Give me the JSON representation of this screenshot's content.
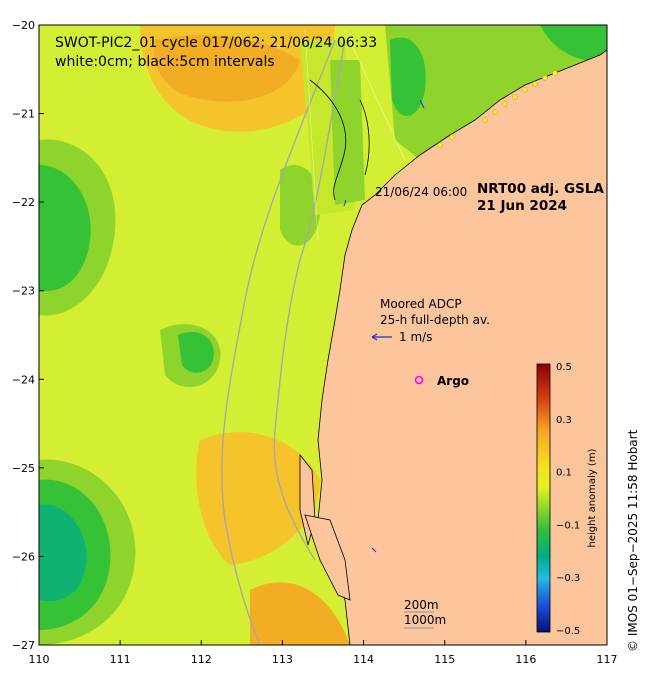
{
  "header": {
    "line1": "SWOT-PIC2_01 cycle 017/062; 21/06/24 06:33",
    "line2": "white:0cm; black:5cm intervals"
  },
  "product": {
    "name": "NRT00 adj. GSLA",
    "date": "21 Jun 2024"
  },
  "swath_time": "21/06/24 06:00",
  "adcp": {
    "line1": "Moored ADCP",
    "line2": "25-h full-depth av.",
    "scale": "1 m/s"
  },
  "argo_label": "Argo",
  "isobaths": {
    "shallow": "200m",
    "deep": "1000m"
  },
  "colorbar": {
    "label": "height anomaly (m)",
    "ticks": [
      "0.5",
      "0.3",
      "0.1",
      "−0.1",
      "−0.3",
      "−0.5"
    ],
    "colors": [
      "#8b0000",
      "#d33a10",
      "#f5a623",
      "#f1e816",
      "#b8e02a",
      "#33c233",
      "#00a88a",
      "#21b5e8",
      "#2050d8",
      "#001080"
    ]
  },
  "credit": "©  IMOS 01−Sep−2025 11:58 Hobart",
  "axes": {
    "x_ticks": [
      "110",
      "111",
      "112",
      "113",
      "114",
      "115",
      "116",
      "117"
    ],
    "y_ticks": [
      "−20",
      "−21",
      "−22",
      "−23",
      "−24",
      "−25",
      "−26",
      "−27"
    ],
    "lon_range": [
      110,
      117
    ],
    "lat_range": [
      -27,
      -20
    ]
  },
  "colors": {
    "land": "#fcc59c",
    "sea_base": "#d4ef33",
    "vector": "#2030c8",
    "argo": "#ff00ff",
    "isobath": "#a8a8a8"
  }
}
